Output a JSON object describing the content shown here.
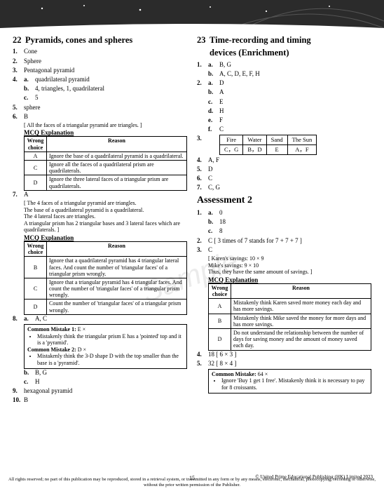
{
  "left": {
    "title_num": "22",
    "title": "Pyramids, cones and spheres",
    "items": [
      {
        "n": "1.",
        "v": "Cone"
      },
      {
        "n": "2.",
        "v": "Sphere"
      },
      {
        "n": "3.",
        "v": "Pentagonal pyramid"
      },
      {
        "n": "4.",
        "subs": [
          {
            "s": "a.",
            "v": "quadrilateral pyramid"
          },
          {
            "s": "b.",
            "v": "4, triangles, 1, quadrilateral"
          },
          {
            "s": "c.",
            "v": "5"
          }
        ]
      },
      {
        "n": "5.",
        "v": "sphere"
      },
      {
        "n": "6.",
        "v": "B",
        "note": "[ All the faces of a triangular pyramid are triangles. ]",
        "mcq": [
          {
            "c": "A",
            "r": "Ignore the base of a quadrilateral pyramid is a quadrilateral."
          },
          {
            "c": "C",
            "r": "Ignore all the faces of a quadrilateral prism are quadrilaterals."
          },
          {
            "c": "D",
            "r": "Ignore the three lateral faces of a triangular prism are quadrilaterals."
          }
        ]
      },
      {
        "n": "7.",
        "v": "A",
        "notes": [
          "[ The 4 faces of a triangular pyramid are triangles.",
          "The base of a quadrilateral pyramid is a quadrilateral.",
          "The 4 lateral faces are triangles.",
          "A triangular prism has 2 triangular bases and 3 lateral faces which are quadrilaterals. ]"
        ],
        "mcq": [
          {
            "c": "B",
            "r": "Ignore that a quadrilateral pyramid has 4 triangular lateral faces. And count the number of 'triangular faces' of a triangular prism wrongly."
          },
          {
            "c": "C",
            "r": "Ignore that a triangular pyramid has 4 triangular faces. And count the number of 'triangular faces' of a triangular prism wrongly."
          },
          {
            "c": "D",
            "r": "Count the number of 'triangular faces' of a triangular prism wrongly."
          }
        ]
      },
      {
        "n": "8.",
        "subs": [
          {
            "s": "a.",
            "v": "A, C",
            "box": {
              "lines": [
                {
                  "bt": "Common Mistake 1:",
                  "tail": " E  ×"
                },
                {
                  "bul": "Mistakenly think the triangular prism E has a 'pointed' top and it is a 'pyramid'."
                },
                {
                  "bt": "Common Mistake 2:",
                  "tail": " D  ×"
                },
                {
                  "bul": "Mistakenly think the 3-D shape D with the top smaller than the base is a 'pyramid'."
                }
              ]
            }
          },
          {
            "s": "b.",
            "v": "B, G"
          },
          {
            "s": "c.",
            "v": "H"
          }
        ]
      },
      {
        "n": "9.",
        "v": "hexagonal pyramid"
      },
      {
        "n": "10.",
        "v": "B"
      }
    ],
    "mcq_head": "MCQ Explanation",
    "mcq_cols": [
      "Wrong choice",
      "Reason"
    ]
  },
  "right": {
    "title_num": "23",
    "title1": "Time-recording and timing",
    "title2": "devices (Enrichment)",
    "items": [
      {
        "n": "1.",
        "subs": [
          {
            "s": "a.",
            "v": "B, G"
          },
          {
            "s": "b.",
            "v": "A, C, D, E, F, H"
          }
        ]
      },
      {
        "n": "2.",
        "subs": [
          {
            "s": "a.",
            "v": "D"
          },
          {
            "s": "b.",
            "v": "A"
          },
          {
            "s": "c.",
            "v": "E"
          },
          {
            "s": "d.",
            "v": "H"
          },
          {
            "s": "e.",
            "v": "F"
          },
          {
            "s": "f.",
            "v": "C"
          }
        ]
      },
      {
        "n": "3.",
        "grid": {
          "head": [
            "Fire",
            "Water",
            "Sand",
            "The Sun"
          ],
          "row": [
            "C，G",
            "B，D",
            "E",
            "A，F"
          ]
        }
      },
      {
        "n": "4.",
        "v": "A, F"
      },
      {
        "n": "5.",
        "v": "D"
      },
      {
        "n": "6.",
        "v": "C"
      },
      {
        "n": "7.",
        "v": "C, G"
      }
    ],
    "assess": {
      "title": "Assessment 2",
      "items": [
        {
          "n": "1.",
          "subs": [
            {
              "s": "a.",
              "v": "0"
            },
            {
              "s": "b.",
              "v": "18"
            },
            {
              "s": "c.",
              "v": "8"
            }
          ]
        },
        {
          "n": "2.",
          "v": "C",
          "tail": "  [ 3 times of 7 stands for 7 + 7 + 7 ]"
        },
        {
          "n": "3.",
          "v": "C",
          "notes": [
            "[ Karen's savings: 10 × 9",
            "  Mike's savings: 9 × 10",
            "  Thus, they have the same amount of savings. ]"
          ],
          "mcq": [
            {
              "c": "A",
              "r": "Mistakenly think Karen saved more money each day and has more savings."
            },
            {
              "c": "B",
              "r": "Mistakenly think Mike saved the money for more days and has more savings."
            },
            {
              "c": "D",
              "r": "Do not understand the relationship between the number of days for saving money and the amount of money saved each day."
            }
          ]
        },
        {
          "n": "4.",
          "v": "18",
          "tail": "  [ 6 × 3 ]"
        },
        {
          "n": "5.",
          "v": "32",
          "tail": "  [ 8 × 4 ]",
          "box": {
            "lines": [
              {
                "bt": "Common Mistake:",
                "tail": " 64  ×"
              },
              {
                "bul": "Ignore 'Buy 1 get 1 free'. Mistakenly think it is necessary to pay for 8 croissants."
              }
            ]
          }
        }
      ]
    }
  },
  "labels": {
    "mcq_head": "MCQ Explanation",
    "mcq_cols": [
      "Wrong choice",
      "Reason"
    ]
  },
  "footer": {
    "page": "15",
    "copy": "© United Prime Educational Publishing (HK) Limited 2023",
    "line": "All rights reserved; no part of this publication may be reproduced, stored in a retrieval system, or transmitted in any form or by any means, electronic, mechanical, photocopying, recording or otherwise, without the prior written permission of the Publisher."
  },
  "watermark": "Sample"
}
